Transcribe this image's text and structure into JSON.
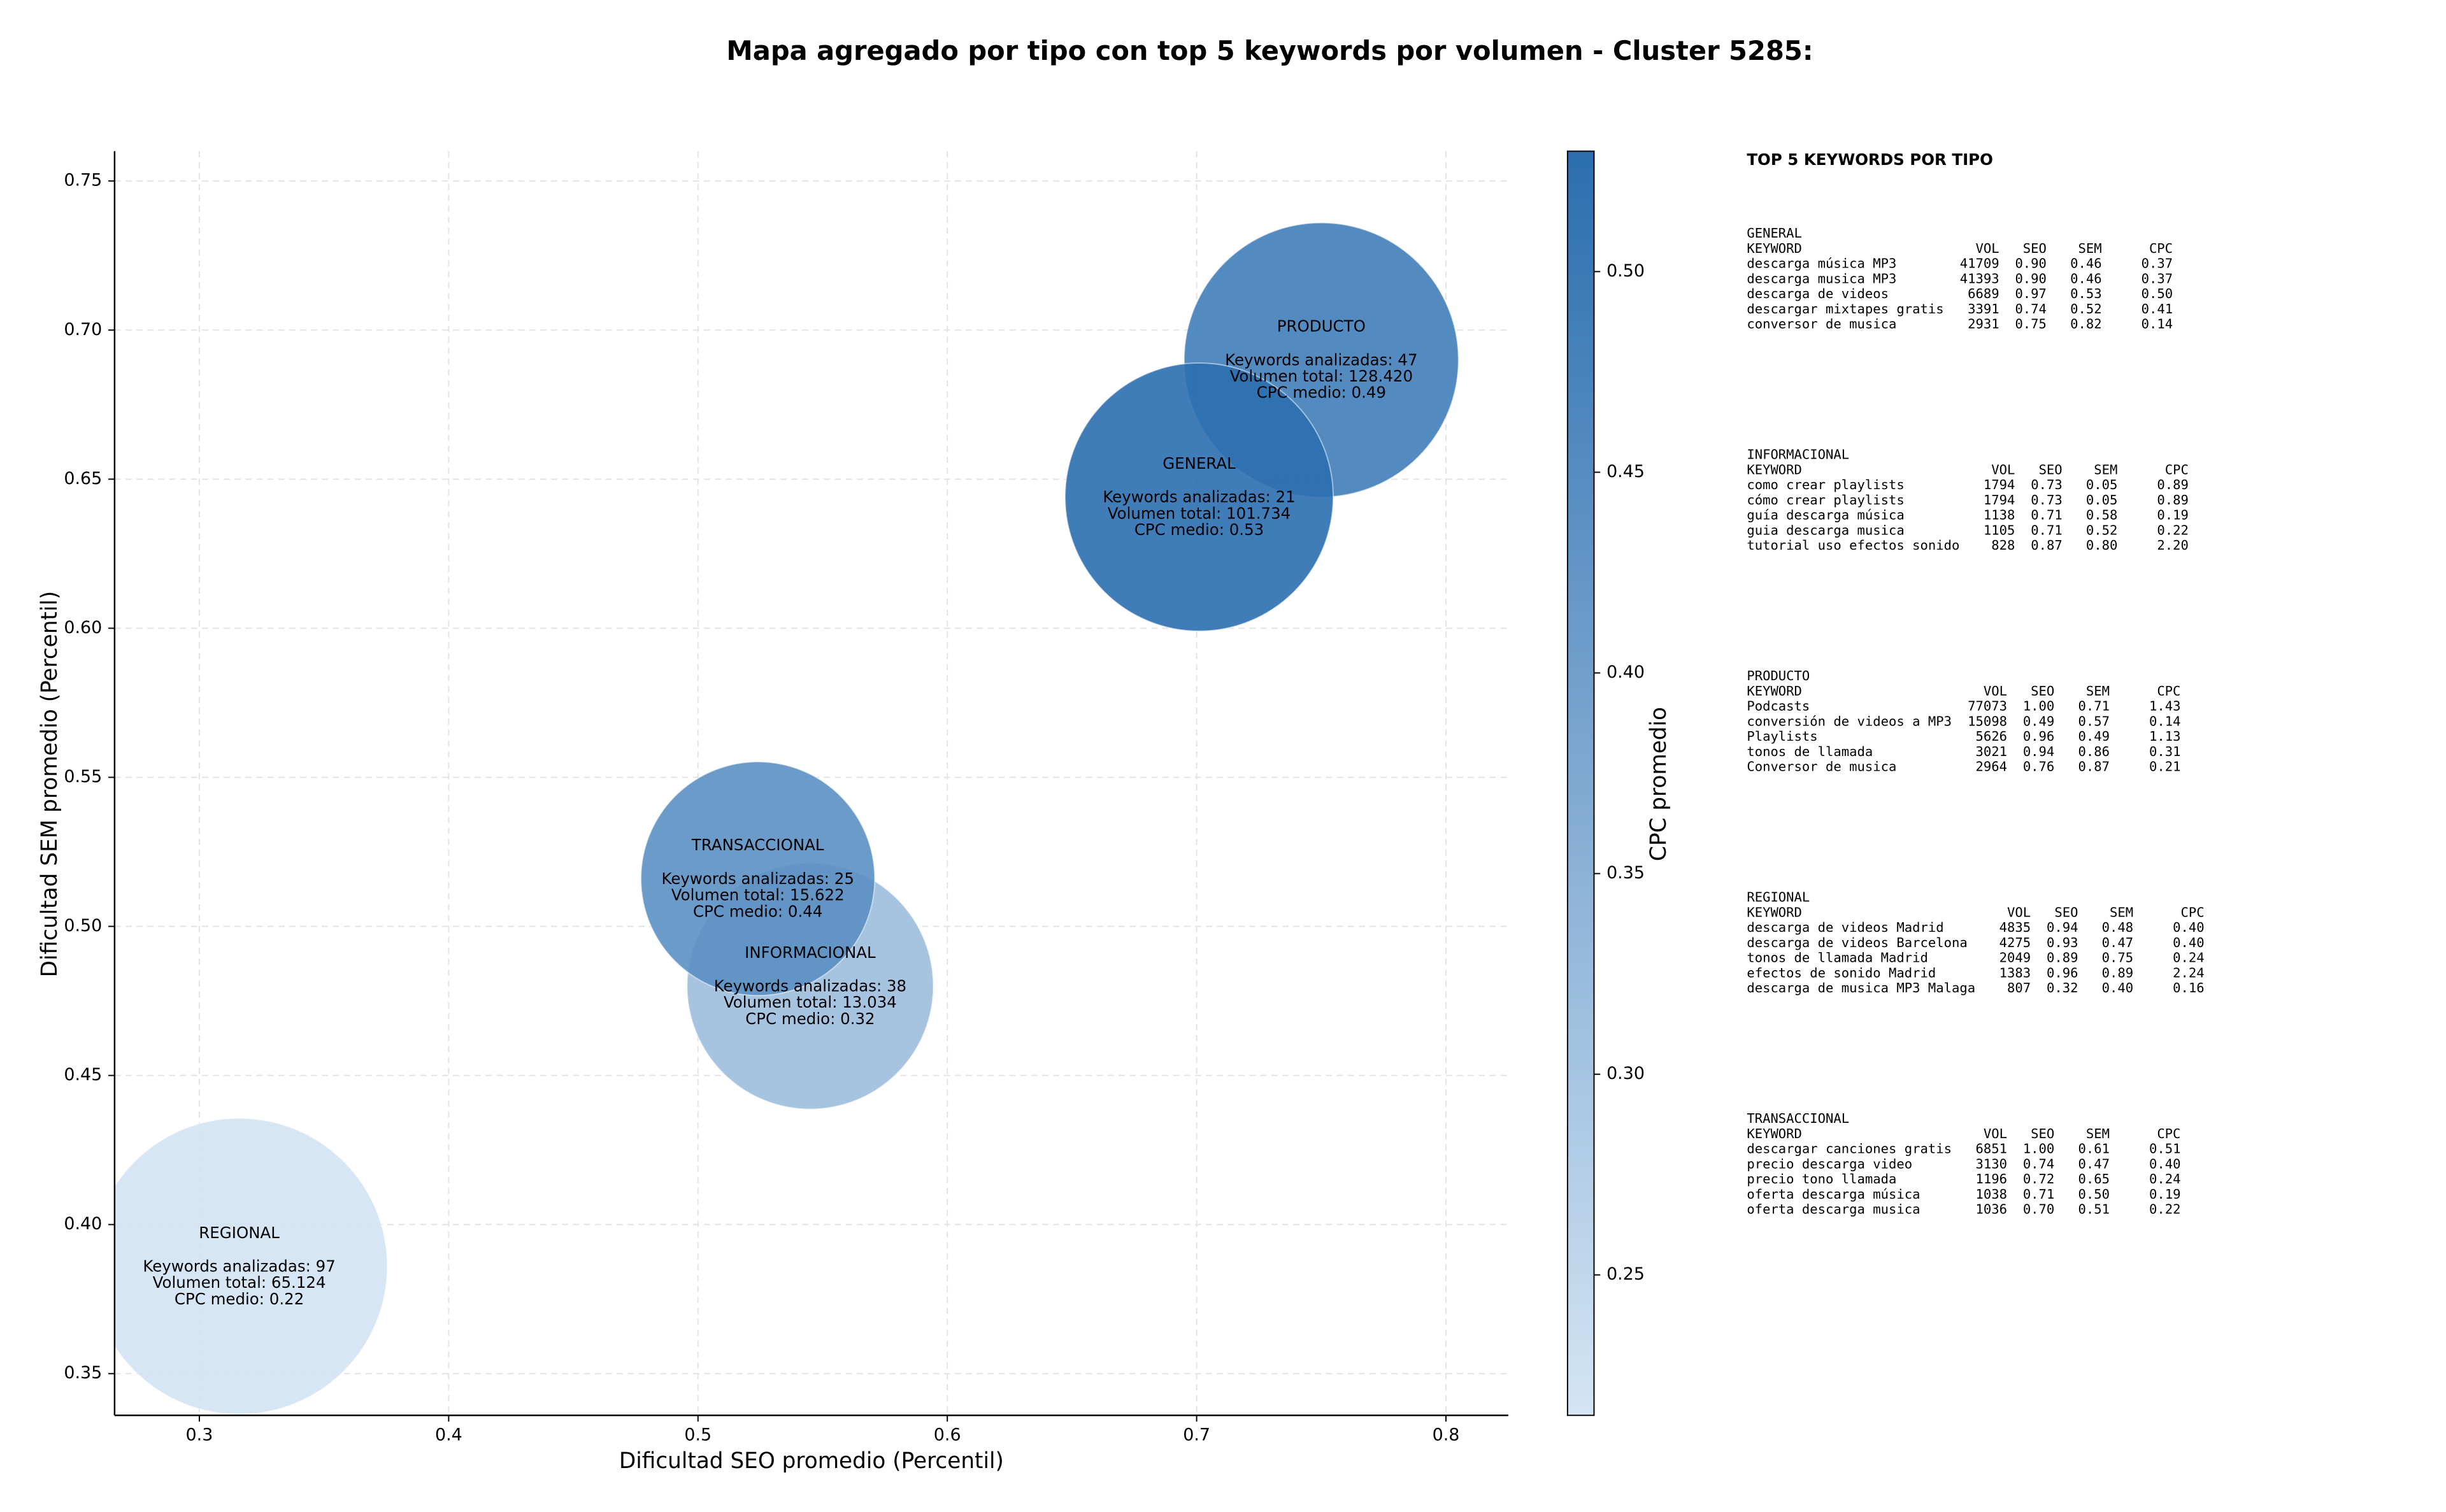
{
  "chart_data": {
    "type": "scatter",
    "title": "Mapa agregado por tipo con top 5 keywords por volumen - Cluster 5285:",
    "xlabel": "Dificultad SEO promedio (Percentil)",
    "ylabel": "Dificultad SEM promedio (Percentil)",
    "xlim": [
      0.266,
      0.825
    ],
    "ylim": [
      0.336,
      0.76
    ],
    "xticks": [
      0.3,
      0.4,
      0.5,
      0.6,
      0.7,
      0.8
    ],
    "yticks": [
      0.35,
      {
        "value": 0.4,
        "label": "0.40"
      },
      0.45,
      {
        "value": 0.5,
        "label": "0.50"
      },
      0.55,
      {
        "value": 0.6,
        "label": "0.60"
      },
      0.65,
      {
        "value": 0.7,
        "label": "0.70"
      },
      0.75
    ],
    "grid": true,
    "colorbar": {
      "label": "CPC promedio",
      "clim": [
        0.215,
        0.53
      ],
      "colormap": [
        "#d4e5f4",
        "#2b6eaf"
      ],
      "ticks": [
        0.25,
        {
          "value": 0.3,
          "label": "0.30"
        },
        0.35,
        {
          "value": 0.4,
          "label": "0.40"
        },
        0.45,
        {
          "value": 0.5,
          "label": "0.50"
        }
      ]
    },
    "series": [
      {
        "name": "PRODUCTO",
        "x": 0.75,
        "y": 0.69,
        "size": 7744,
        "cpc": 0.49,
        "labels": [
          "Keywords analizadas: 47",
          "Volumen total: 128.420",
          "CPC medio: 0.49"
        ]
      },
      {
        "name": "GENERAL",
        "x": 0.701,
        "y": 0.644,
        "size": 7396,
        "cpc": 0.53,
        "labels": [
          "Keywords analizadas: 21",
          "Volumen total: 101.734",
          "CPC medio: 0.53"
        ]
      },
      {
        "name": "INFORMACIONAL",
        "x": 0.545,
        "y": 0.48,
        "size": 6241,
        "cpc": 0.32,
        "labels": [
          "Keywords analizadas: 38",
          "Volumen total: 13.034",
          "CPC medio: 0.32"
        ]
      },
      {
        "name": "TRANSACCIONAL",
        "x": 0.524,
        "y": 0.516,
        "size": 5625,
        "cpc": 0.44,
        "labels": [
          "Keywords analizadas: 25",
          "Volumen total: 15.622",
          "CPC medio: 0.44"
        ]
      },
      {
        "name": "REGIONAL",
        "x": 0.316,
        "y": 0.386,
        "size": 9025,
        "cpc": 0.22,
        "labels": [
          "Keywords analizadas: 97",
          "Volumen total: 65.124",
          "CPC medio: 0.22"
        ]
      }
    ],
    "panel": {
      "title": "TOP 5 KEYWORDS POR TIPO",
      "header": [
        "KEYWORD",
        "VOL",
        "SEO",
        "SEM",
        "CPC"
      ],
      "tables": [
        {
          "name": "GENERAL",
          "rows": [
            [
              "descarga música MP3",
              "41709",
              "0.90",
              "0.46",
              "0.37"
            ],
            [
              "descarga musica MP3",
              "41393",
              "0.90",
              "0.46",
              "0.37"
            ],
            [
              "descarga de videos",
              "6689",
              "0.97",
              "0.53",
              "0.50"
            ],
            [
              "descargar mixtapes gratis",
              "3391",
              "0.74",
              "0.52",
              "0.41"
            ],
            [
              "conversor de musica",
              "2931",
              "0.75",
              "0.82",
              "0.14"
            ]
          ]
        },
        {
          "name": "INFORMACIONAL",
          "rows": [
            [
              "como crear playlists",
              "1794",
              "0.73",
              "0.05",
              "0.89"
            ],
            [
              "cómo crear playlists",
              "1794",
              "0.73",
              "0.05",
              "0.89"
            ],
            [
              "guía descarga música",
              "1138",
              "0.71",
              "0.58",
              "0.19"
            ],
            [
              "guia descarga musica",
              "1105",
              "0.71",
              "0.52",
              "0.22"
            ],
            [
              "tutorial uso efectos sonido",
              "828",
              "0.87",
              "0.80",
              "2.20"
            ]
          ]
        },
        {
          "name": "PRODUCTO",
          "rows": [
            [
              "Podcasts",
              "77073",
              "1.00",
              "0.71",
              "1.43"
            ],
            [
              "conversión de videos a MP3",
              "15098",
              "0.49",
              "0.57",
              "0.14"
            ],
            [
              "Playlists",
              "5626",
              "0.96",
              "0.49",
              "1.13"
            ],
            [
              "tonos de llamada",
              "3021",
              "0.94",
              "0.86",
              "0.31"
            ],
            [
              "Conversor de musica",
              "2964",
              "0.76",
              "0.87",
              "0.21"
            ]
          ]
        },
        {
          "name": "REGIONAL",
          "rows": [
            [
              "descarga de videos Madrid",
              "4835",
              "0.94",
              "0.48",
              "0.40"
            ],
            [
              "descarga de videos Barcelona",
              "4275",
              "0.93",
              "0.47",
              "0.40"
            ],
            [
              "tonos de llamada Madrid",
              "2049",
              "0.89",
              "0.75",
              "0.24"
            ],
            [
              "efectos de sonido Madrid",
              "1383",
              "0.96",
              "0.89",
              "2.24"
            ],
            [
              "descarga de musica MP3 Malaga",
              "807",
              "0.32",
              "0.40",
              "0.16"
            ]
          ]
        },
        {
          "name": "TRANSACCIONAL",
          "rows": [
            [
              "descargar canciones gratis",
              "6851",
              "1.00",
              "0.61",
              "0.51"
            ],
            [
              "precio descarga video",
              "3130",
              "0.74",
              "0.47",
              "0.40"
            ],
            [
              "precio tono llamada",
              "1196",
              "0.72",
              "0.65",
              "0.24"
            ],
            [
              "oferta descarga música",
              "1038",
              "0.71",
              "0.50",
              "0.19"
            ],
            [
              "oferta descarga musica",
              "1036",
              "0.70",
              "0.51",
              "0.22"
            ]
          ]
        }
      ]
    }
  }
}
